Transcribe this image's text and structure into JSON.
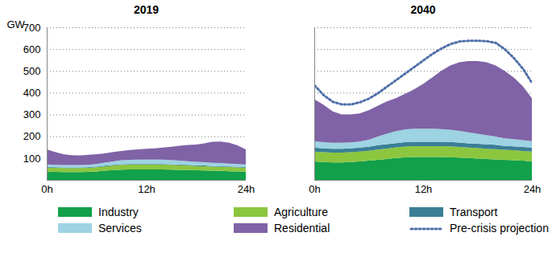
{
  "chart_data": [
    {
      "type": "area",
      "title": "2019",
      "stacked": true,
      "grid": true,
      "legend": "bottom",
      "ylabel": "GW",
      "x": [
        0,
        1,
        2,
        3,
        4,
        5,
        6,
        7,
        8,
        9,
        10,
        11,
        12,
        13,
        14,
        15,
        16,
        17,
        18,
        19,
        20,
        21,
        22,
        23,
        24
      ],
      "xlim": [
        0,
        24
      ],
      "xticks": [
        {
          "value": 0,
          "label": "0h"
        },
        {
          "value": 12,
          "label": "12h"
        },
        {
          "value": 24,
          "label": "24h"
        }
      ],
      "ylim": [
        0,
        700
      ],
      "yticks": [
        100,
        200,
        300,
        400,
        500,
        600,
        700
      ],
      "series": [
        {
          "name": "Industry",
          "color": "#12a04b",
          "values": [
            38,
            37,
            36,
            36,
            36,
            37,
            39,
            42,
            45,
            47,
            48,
            48,
            48,
            48,
            48,
            47,
            46,
            45,
            44,
            43,
            42,
            41,
            40,
            39,
            38
          ]
        },
        {
          "name": "Agriculture",
          "color": "#8cc63f",
          "values": [
            18,
            18,
            18,
            18,
            18,
            18,
            19,
            20,
            21,
            22,
            22,
            22,
            22,
            22,
            22,
            22,
            21,
            21,
            20,
            20,
            19,
            19,
            19,
            18,
            18
          ]
        },
        {
          "name": "Transport",
          "color": "#3a7f95",
          "values": [
            3,
            3,
            3,
            3,
            3,
            3,
            3,
            3,
            3,
            3,
            3,
            3,
            3,
            3,
            3,
            3,
            3,
            3,
            3,
            3,
            3,
            3,
            3,
            3,
            3
          ]
        },
        {
          "name": "Services",
          "color": "#9dd3e3",
          "values": [
            12,
            11,
            11,
            11,
            11,
            11,
            12,
            14,
            16,
            18,
            19,
            20,
            20,
            20,
            20,
            19,
            18,
            17,
            16,
            15,
            14,
            14,
            13,
            13,
            12
          ]
        },
        {
          "name": "Residential",
          "color": "#7f63a6",
          "values": [
            69,
            59,
            50,
            45,
            44,
            46,
            45,
            43,
            43,
            43,
            45,
            47,
            50,
            52,
            55,
            61,
            69,
            74,
            79,
            87,
            97,
            99,
            95,
            85,
            69
          ]
        }
      ]
    },
    {
      "type": "area",
      "title": "2040",
      "stacked": true,
      "grid": true,
      "legend": "bottom",
      "tick_labels": "x",
      "x": [
        0,
        1,
        2,
        3,
        4,
        5,
        6,
        7,
        8,
        9,
        10,
        11,
        12,
        13,
        14,
        15,
        16,
        17,
        18,
        19,
        20,
        21,
        22,
        23,
        24
      ],
      "xlim": [
        0,
        24
      ],
      "xticks": [
        {
          "value": 0,
          "label": "0h"
        },
        {
          "value": 12,
          "label": "12h"
        },
        {
          "value": 24,
          "label": "24h"
        }
      ],
      "ylim": [
        0,
        700
      ],
      "yticks": [
        100,
        200,
        300,
        400,
        500,
        600,
        700
      ],
      "series": [
        {
          "name": "Industry",
          "color": "#12a04b",
          "values": [
            85,
            82,
            80,
            80,
            82,
            85,
            88,
            92,
            96,
            100,
            103,
            105,
            105,
            105,
            105,
            104,
            102,
            100,
            98,
            96,
            94,
            92,
            90,
            88,
            85
          ]
        },
        {
          "name": "Agriculture",
          "color": "#8cc63f",
          "values": [
            45,
            45,
            45,
            45,
            45,
            45,
            46,
            47,
            48,
            49,
            50,
            50,
            50,
            50,
            50,
            50,
            49,
            48,
            48,
            47,
            47,
            46,
            46,
            45,
            45
          ]
        },
        {
          "name": "Transport",
          "color": "#3a7f95",
          "values": [
            18,
            18,
            18,
            18,
            18,
            18,
            18,
            20,
            20,
            20,
            20,
            20,
            20,
            20,
            20,
            20,
            20,
            20,
            20,
            20,
            20,
            18,
            18,
            18,
            18
          ]
        },
        {
          "name": "Services",
          "color": "#9dd3e3",
          "values": [
            30,
            28,
            27,
            27,
            27,
            28,
            32,
            40,
            48,
            55,
            58,
            60,
            60,
            60,
            58,
            56,
            54,
            50,
            46,
            42,
            38,
            35,
            33,
            31,
            30
          ]
        },
        {
          "name": "Residential",
          "color": "#7f63a6",
          "values": [
            192,
            172,
            145,
            130,
            128,
            129,
            136,
            141,
            148,
            151,
            164,
            180,
            205,
            235,
            267,
            295,
            315,
            327,
            333,
            335,
            326,
            309,
            283,
            248,
            197
          ]
        },
        {
          "name": "Pre-crisis projection",
          "type": "line",
          "line_style": "dotted",
          "color": "#4f6fa8",
          "values": [
            435,
            390,
            360,
            348,
            348,
            358,
            375,
            400,
            430,
            460,
            490,
            520,
            550,
            580,
            605,
            625,
            637,
            640,
            640,
            638,
            630,
            600,
            560,
            510,
            445
          ]
        }
      ]
    }
  ]
}
